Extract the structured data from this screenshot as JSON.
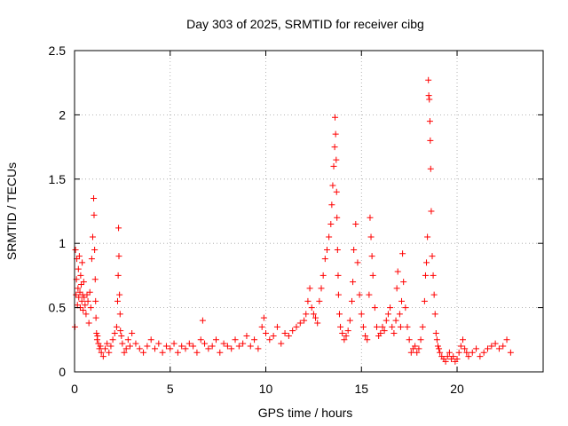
{
  "chart_data": {
    "type": "scatter",
    "title": "Day 303 of 2025, SRMTID for receiver cibg",
    "xlabel": "GPS time / hours",
    "ylabel": "SRMTID / TECUs",
    "xlim": [
      0,
      24.5
    ],
    "ylim": [
      0,
      2.5
    ],
    "xticks": [
      0,
      5,
      10,
      15,
      20
    ],
    "xtick_labels": [
      "0",
      "5",
      "10",
      "15",
      "20"
    ],
    "yticks": [
      0,
      0.5,
      1,
      1.5,
      2,
      2.5
    ],
    "ytick_labels": [
      "0",
      "0.5",
      "1",
      "1.5",
      "2",
      "2.5"
    ],
    "grid": true,
    "marker": "+",
    "series": [
      {
        "name": "SRMTID",
        "color": "#ff0000",
        "x": [
          0.02,
          0.05,
          0.08,
          0.1,
          0.12,
          0.15,
          0.18,
          0.2,
          0.22,
          0.25,
          0.28,
          0.3,
          0.32,
          0.35,
          0.38,
          0.4,
          0.42,
          0.45,
          0.48,
          0.5,
          0.55,
          0.6,
          0.65,
          0.7,
          0.75,
          0.8,
          0.85,
          0.9,
          0.95,
          1.0,
          1.02,
          1.05,
          1.08,
          1.1,
          1.12,
          1.15,
          1.18,
          1.2,
          1.25,
          1.3,
          1.35,
          1.4,
          1.5,
          1.6,
          1.7,
          1.8,
          1.9,
          2.0,
          2.1,
          2.2,
          2.25,
          2.28,
          2.3,
          2.32,
          2.35,
          2.38,
          2.4,
          2.45,
          2.5,
          2.6,
          2.7,
          2.8,
          2.9,
          3.0,
          3.2,
          3.4,
          3.6,
          3.8,
          4.0,
          4.2,
          4.4,
          4.6,
          4.8,
          5.0,
          5.2,
          5.4,
          5.6,
          5.8,
          6.0,
          6.2,
          6.4,
          6.6,
          6.7,
          6.8,
          7.0,
          7.2,
          7.4,
          7.6,
          7.8,
          8.0,
          8.2,
          8.4,
          8.6,
          8.8,
          9.0,
          9.2,
          9.4,
          9.6,
          9.8,
          9.9,
          10.0,
          10.2,
          10.4,
          10.6,
          10.8,
          11.0,
          11.2,
          11.4,
          11.6,
          11.8,
          12.0,
          12.1,
          12.2,
          12.3,
          12.4,
          12.5,
          12.6,
          12.7,
          12.8,
          12.9,
          13.0,
          13.1,
          13.2,
          13.3,
          13.4,
          13.45,
          13.5,
          13.55,
          13.6,
          13.62,
          13.65,
          13.68,
          13.7,
          13.72,
          13.75,
          13.78,
          13.8,
          13.85,
          13.9,
          14.0,
          14.1,
          14.2,
          14.3,
          14.4,
          14.5,
          14.55,
          14.6,
          14.7,
          14.8,
          14.9,
          15.0,
          15.1,
          15.2,
          15.3,
          15.4,
          15.45,
          15.5,
          15.55,
          15.6,
          15.7,
          15.8,
          15.9,
          16.0,
          16.1,
          16.2,
          16.3,
          16.4,
          16.5,
          16.6,
          16.7,
          16.8,
          16.85,
          16.9,
          17.0,
          17.05,
          17.1,
          17.15,
          17.2,
          17.3,
          17.4,
          17.5,
          17.6,
          17.7,
          17.8,
          17.9,
          18.0,
          18.1,
          18.2,
          18.3,
          18.35,
          18.4,
          18.45,
          18.5,
          18.52,
          18.55,
          18.58,
          18.6,
          18.62,
          18.65,
          18.7,
          18.75,
          18.8,
          18.85,
          18.9,
          18.95,
          19.0,
          19.05,
          19.1,
          19.2,
          19.3,
          19.4,
          19.5,
          19.6,
          19.7,
          19.8,
          19.9,
          20.0,
          20.1,
          20.2,
          20.3,
          20.4,
          20.5,
          20.6,
          20.8,
          21.0,
          21.2,
          21.4,
          21.6,
          21.8,
          22.0,
          22.2,
          22.4,
          22.6,
          22.8
        ],
        "y": [
          0.35,
          0.95,
          0.6,
          0.72,
          0.88,
          0.52,
          0.65,
          0.8,
          0.58,
          0.9,
          0.62,
          0.5,
          0.75,
          0.68,
          0.55,
          0.85,
          0.6,
          0.48,
          0.7,
          0.58,
          0.52,
          0.45,
          0.6,
          0.55,
          0.38,
          0.62,
          0.5,
          0.88,
          1.05,
          1.35,
          1.22,
          0.95,
          0.72,
          0.55,
          0.42,
          0.3,
          0.25,
          0.28,
          0.22,
          0.18,
          0.2,
          0.15,
          0.12,
          0.18,
          0.22,
          0.15,
          0.2,
          0.25,
          0.3,
          0.35,
          0.55,
          0.75,
          1.12,
          0.9,
          0.6,
          0.45,
          0.32,
          0.28,
          0.22,
          0.15,
          0.18,
          0.25,
          0.2,
          0.3,
          0.22,
          0.18,
          0.15,
          0.2,
          0.25,
          0.18,
          0.22,
          0.15,
          0.2,
          0.18,
          0.22,
          0.15,
          0.2,
          0.18,
          0.22,
          0.2,
          0.15,
          0.25,
          0.4,
          0.22,
          0.18,
          0.2,
          0.25,
          0.15,
          0.22,
          0.2,
          0.18,
          0.25,
          0.2,
          0.22,
          0.28,
          0.2,
          0.25,
          0.18,
          0.35,
          0.42,
          0.3,
          0.25,
          0.28,
          0.35,
          0.22,
          0.3,
          0.28,
          0.32,
          0.35,
          0.38,
          0.4,
          0.45,
          0.55,
          0.65,
          0.5,
          0.45,
          0.42,
          0.38,
          0.55,
          0.65,
          0.75,
          0.88,
          0.95,
          1.05,
          1.15,
          1.3,
          1.45,
          1.6,
          1.75,
          1.98,
          1.85,
          1.65,
          1.4,
          1.2,
          0.95,
          0.75,
          0.6,
          0.45,
          0.35,
          0.3,
          0.25,
          0.28,
          0.32,
          0.4,
          0.55,
          0.7,
          0.95,
          1.15,
          0.85,
          0.6,
          0.45,
          0.35,
          0.28,
          0.25,
          0.6,
          1.2,
          1.05,
          0.9,
          0.75,
          0.5,
          0.35,
          0.28,
          0.3,
          0.35,
          0.32,
          0.4,
          0.45,
          0.5,
          0.35,
          0.3,
          0.4,
          0.65,
          0.78,
          0.45,
          0.35,
          0.55,
          0.92,
          0.7,
          0.5,
          0.35,
          0.25,
          0.15,
          0.18,
          0.2,
          0.15,
          0.18,
          0.25,
          0.35,
          0.55,
          0.75,
          0.85,
          1.05,
          2.27,
          2.15,
          2.12,
          1.95,
          1.8,
          1.58,
          1.25,
          0.9,
          0.75,
          0.6,
          0.45,
          0.3,
          0.25,
          0.2,
          0.18,
          0.15,
          0.12,
          0.1,
          0.08,
          0.12,
          0.15,
          0.1,
          0.12,
          0.08,
          0.1,
          0.15,
          0.2,
          0.25,
          0.18,
          0.15,
          0.12,
          0.15,
          0.18,
          0.12,
          0.15,
          0.18,
          0.2,
          0.22,
          0.18,
          0.2,
          0.25,
          0.15
        ]
      }
    ]
  }
}
